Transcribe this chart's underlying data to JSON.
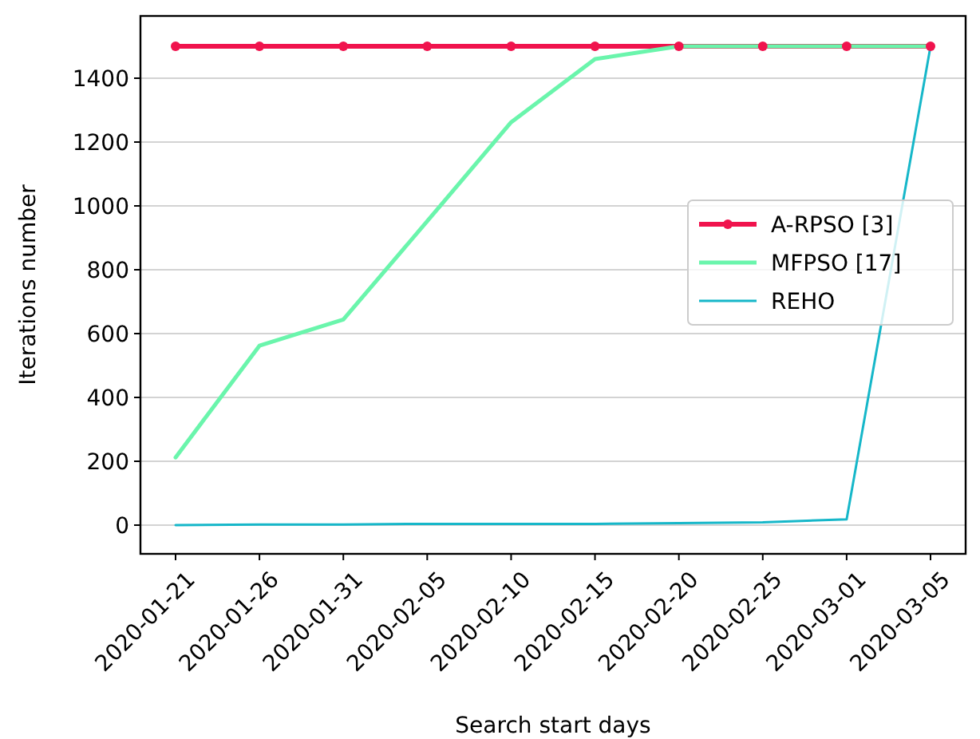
{
  "chart_data": {
    "type": "line",
    "xlabel": "Search start days",
    "ylabel": "Iterations number",
    "categories": [
      "2020-01-21",
      "2020-01-26",
      "2020-01-31",
      "2020-02-05",
      "2020-02-10",
      "2020-02-15",
      "2020-02-20",
      "2020-02-25",
      "2020-03-01",
      "2020-03-05"
    ],
    "series": [
      {
        "name": "A-RPSO [3]",
        "color": "#f0134d",
        "marker": "circle",
        "values": [
          1500,
          1500,
          1500,
          1500,
          1500,
          1500,
          1500,
          1500,
          1500,
          1500
        ]
      },
      {
        "name": "MFPSO [17]",
        "color": "#6af5ac",
        "marker": "none",
        "values": [
          212,
          562,
          644,
          952,
          1262,
          1460,
          1500,
          1500,
          1500,
          1500
        ]
      },
      {
        "name": "REHO",
        "color": "#16b7c9",
        "marker": "none",
        "values": [
          0,
          2,
          2,
          4,
          4,
          4,
          6,
          9,
          18,
          1500
        ]
      }
    ],
    "ylim": [
      -90,
      1595
    ],
    "yticks": [
      0,
      200,
      400,
      600,
      800,
      1000,
      1200,
      1400
    ],
    "grid": "y",
    "legend": "right"
  }
}
